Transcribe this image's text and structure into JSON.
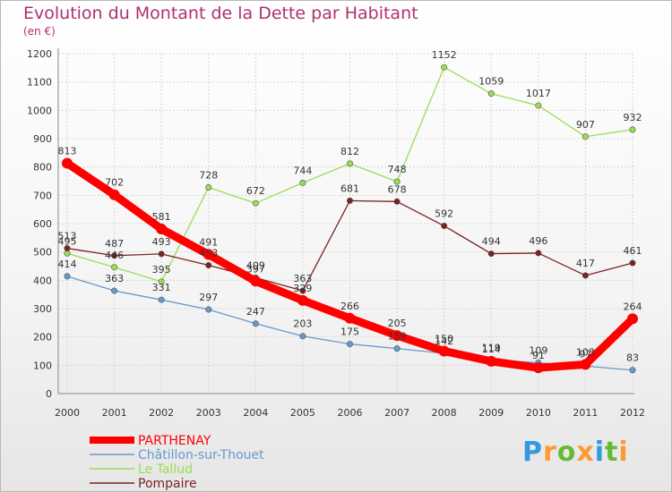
{
  "chart_data": {
    "type": "line",
    "title": "Evolution du Montant de la Dette par Habitant",
    "subtitle": "(en €)",
    "x": [
      "2000",
      "2001",
      "2002",
      "2003",
      "2004",
      "2005",
      "2006",
      "2007",
      "2008",
      "2009",
      "2010",
      "2011",
      "2012"
    ],
    "yticks": [
      "0",
      "100",
      "200",
      "300",
      "400",
      "500",
      "600",
      "700",
      "800",
      "900",
      "1000",
      "1100",
      "1200"
    ],
    "ylim": [
      0,
      1200
    ],
    "grid": true,
    "legend_position": "bottom-left",
    "series": [
      {
        "name": "PARTHENAY",
        "color": "#ff0000",
        "values": [
          813,
          702,
          581,
          491,
          397,
          329,
          266,
          205,
          150,
          114,
          91,
          103,
          264
        ]
      },
      {
        "name": "Châtillon-sur-Thouet",
        "color": "#6699cc",
        "values": [
          414,
          363,
          331,
          297,
          247,
          203,
          175,
          159,
          142,
          119,
          109,
          97,
          83
        ]
      },
      {
        "name": "Le Tallud",
        "color": "#99dd55",
        "values": [
          495,
          446,
          395,
          728,
          672,
          744,
          812,
          748,
          1152,
          1059,
          1017,
          907,
          932
        ]
      },
      {
        "name": "Pompaire",
        "color": "#7a2222",
        "values": [
          513,
          487,
          493,
          453,
          409,
          363,
          681,
          678,
          592,
          494,
          496,
          417,
          461
        ]
      }
    ]
  },
  "brand": {
    "letters": [
      "P",
      "r",
      "o",
      "x",
      "i",
      "t",
      "i"
    ],
    "colors": [
      "#3399dd",
      "#ff9933",
      "#66bb33",
      "#ff9933",
      "#3399dd",
      "#66bb33",
      "#ff9933"
    ]
  }
}
